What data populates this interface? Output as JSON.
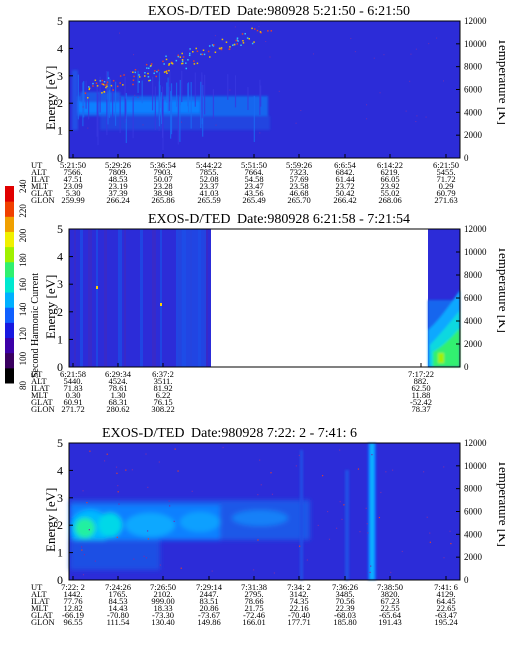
{
  "colorbar": {
    "label": "Second Harmonic Current",
    "ticks": [
      "80",
      "100",
      "120",
      "140",
      "160",
      "180",
      "200",
      "220",
      "240"
    ],
    "colors": [
      "#000000",
      "#3a0060",
      "#3c00a8",
      "#1818e0",
      "#1060ff",
      "#00b0ff",
      "#00e8d0",
      "#30f070",
      "#a0f000",
      "#f0f000",
      "#f0a000",
      "#f04000",
      "#e00000"
    ]
  },
  "panels": [
    {
      "title": "EXOS-D/TED",
      "date": "Date:980928  5:21:50 - 6:21:50",
      "ylabel": "Energy [eV]",
      "y2label": "Temperature [K]",
      "yticks": [
        "0",
        "1",
        "2",
        "3",
        "4",
        "5"
      ],
      "y2ticks": [
        "0",
        "2000",
        "4000",
        "6000",
        "8000",
        "10000",
        "12000"
      ],
      "row_labels": [
        "UT",
        "ALT",
        "ILAT",
        "MLT",
        "GLAT",
        "GLON"
      ],
      "columns": [
        [
          "5:21:50",
          "7566.",
          "47.51",
          "23.09",
          "5.30",
          "259.99"
        ],
        [
          "5:29:26",
          "7809.",
          "48.53",
          "23.19",
          "37.39",
          "266.24"
        ],
        [
          "5:36:54",
          "7903.",
          "50.07",
          "23.28",
          "38.98",
          "265.86"
        ],
        [
          "5:44:22",
          "7855.",
          "52.08",
          "23.37",
          "41.03",
          "265.59"
        ],
        [
          "5:51:50",
          "7664.",
          "54.58",
          "23.47",
          "43.56",
          "265.49"
        ],
        [
          "5:59:26",
          "7323.",
          "57.69",
          "23.58",
          "46.68",
          "265.70"
        ],
        [
          "6:6:54",
          "6842.",
          "61.44",
          "23.72",
          "50.42",
          "266.42"
        ],
        [
          "6:14:22",
          "6219.",
          "66.05",
          "23.92",
          "55.02",
          "268.06"
        ],
        [
          "6:21:50",
          "5455.",
          "71.72",
          "0.29",
          "60.79",
          "271.63"
        ]
      ]
    },
    {
      "title": "EXOS-D/TED",
      "date": "Date:980928  6:21:58 - 7:21:54",
      "ylabel": "Energy [eV]",
      "y2label": "Temperature [K]",
      "yticks": [
        "0",
        "1",
        "2",
        "3",
        "4",
        "5"
      ],
      "y2ticks": [
        "0",
        "2000",
        "4000",
        "6000",
        "8000",
        "10000",
        "12000"
      ],
      "row_labels": [
        "UT",
        "ALT",
        "ILAT",
        "MLT",
        "GLAT",
        "GLON"
      ],
      "columns": [
        [
          "6:21:58",
          "5440.",
          "71.83",
          "0.30",
          "60.91",
          "271.72"
        ],
        [
          "6:29:34",
          "4524.",
          "78.61",
          "1.30",
          "68.31",
          "280.62"
        ],
        [
          "6:37:2",
          "3511.",
          "81.92",
          "6.22",
          "76.15",
          "308.22"
        ],
        [
          "7:17:22",
          "882.",
          "62.50",
          "11.88",
          "-52.42",
          "78.37"
        ]
      ]
    },
    {
      "title": "EXOS-D/TED",
      "date": "Date:980928  7:22: 2 - 7:41: 6",
      "ylabel": "Energy [eV]",
      "y2label": "Temperature [K]",
      "yticks": [
        "0",
        "1",
        "2",
        "3",
        "4",
        "5"
      ],
      "y2ticks": [
        "0",
        "2000",
        "4000",
        "6000",
        "8000",
        "10000",
        "12000"
      ],
      "row_labels": [
        "UT",
        "ALT",
        "ILAT",
        "MLT",
        "GLAT",
        "GLON"
      ],
      "columns": [
        [
          "7:22: 2",
          "1442.",
          "77.76",
          "12.82",
          "-66.19",
          "96.55"
        ],
        [
          "7:24:26",
          "1765.",
          "84.53",
          "14.43",
          "-70.80",
          "111.54"
        ],
        [
          "7:26:50",
          "2102.",
          "999.00",
          "18.33",
          "-73.30",
          "130.40"
        ],
        [
          "7:29:14",
          "2447.",
          "83.51",
          "20.86",
          "-73.67",
          "149.86"
        ],
        [
          "7:31:38",
          "2795.",
          "78.66",
          "21.75",
          "-72.46",
          "166.01"
        ],
        [
          "7:34: 2",
          "3142.",
          "74.35",
          "22.16",
          "-70.40",
          "177.71"
        ],
        [
          "7:36:26",
          "3485.",
          "70.56",
          "22.39",
          "-68.03",
          "185.80"
        ],
        [
          "7:38:50",
          "3820.",
          "67.23",
          "22.55",
          "-65.64",
          "191.43"
        ],
        [
          "7:41: 6",
          "4129.",
          "64.45",
          "22.65",
          "-63.47",
          "195.24"
        ]
      ]
    }
  ],
  "chart_data": [
    {
      "type": "heatmap",
      "title": "EXOS-D/TED  Date:980928  5:21:50 - 6:21:50",
      "ylabel": "Energy [eV]",
      "y2label": "Temperature [K]",
      "ylim": [
        0,
        5
      ],
      "y2lim": [
        0,
        12000
      ],
      "x": [
        "5:21:50",
        "5:29:26",
        "5:36:54",
        "5:44:22",
        "5:51:50",
        "5:59:26",
        "6:6:54",
        "6:14:22",
        "6:21:50"
      ],
      "colorbar_range": [
        80,
        240
      ],
      "features": [
        {
          "name": "band",
          "x_start": "5:21:50",
          "x_end": "5:51:50",
          "energy_eV": [
            1.2,
            2.2
          ]
        },
        {
          "name": "rising-scatter",
          "x_start": "5:24:00",
          "x_end": "6:0:00",
          "energy_eV": [
            2.4,
            4.6
          ]
        }
      ]
    },
    {
      "type": "heatmap",
      "title": "EXOS-D/TED  Date:980928  6:21:58 - 7:21:54",
      "ylabel": "Energy [eV]",
      "y2label": "Temperature [K]",
      "ylim": [
        0,
        5
      ],
      "y2lim": [
        0,
        12000
      ],
      "x": [
        "6:21:58",
        "6:29:34",
        "6:37:2",
        "7:17:22"
      ],
      "colorbar_range": [
        80,
        240
      ],
      "data_gap": [
        "6:38:00",
        "7:17:00"
      ]
    },
    {
      "type": "heatmap",
      "title": "EXOS-D/TED  Date:980928  7:22: 2 - 7:41: 6",
      "ylabel": "Energy [eV]",
      "y2label": "Temperature [K]",
      "ylim": [
        0,
        5
      ],
      "y2lim": [
        0,
        12000
      ],
      "x": [
        "7:22: 2",
        "7:24:26",
        "7:26:50",
        "7:29:14",
        "7:31:38",
        "7:34: 2",
        "7:36:26",
        "7:38:50",
        "7:41: 6"
      ],
      "colorbar_range": [
        80,
        240
      ],
      "features": [
        {
          "name": "band",
          "x_start": "7:22: 2",
          "x_end": "7:31:00",
          "energy_eV": [
            1.0,
            2.8
          ]
        },
        {
          "name": "spike",
          "x": "7:36:26",
          "energy_eV": [
            0,
            5
          ]
        }
      ]
    }
  ]
}
